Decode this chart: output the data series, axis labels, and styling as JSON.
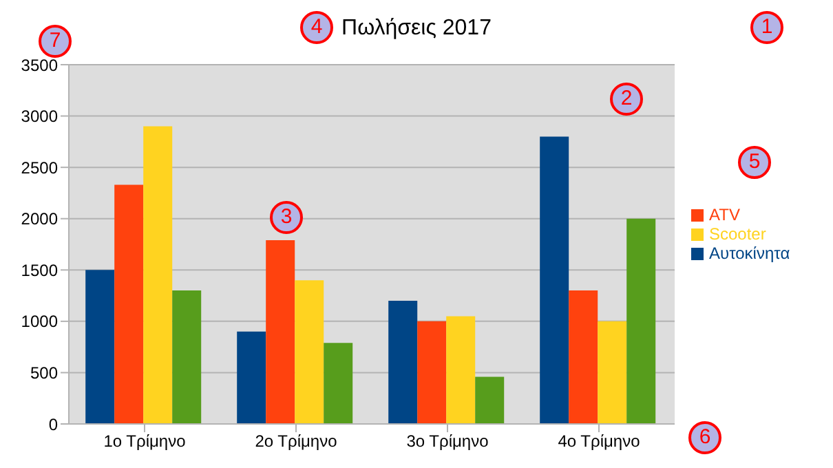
{
  "chart_data": {
    "type": "bar",
    "title": "Πωλήσεις 2017",
    "categories": [
      "1ο Τρίμηνο",
      "2ο Τρίμηνο",
      "3ο Τρίμηνο",
      "4ο Τρίμηνο"
    ],
    "series": [
      {
        "name": "Αυτοκίνητα",
        "color": "#004586",
        "values": [
          1500,
          900,
          1200,
          2800
        ]
      },
      {
        "name": "ATV",
        "color": "#ff420e",
        "values": [
          2330,
          1790,
          1000,
          1300
        ]
      },
      {
        "name": "Scooter",
        "color": "#ffd320",
        "values": [
          2900,
          1400,
          1050,
          1000
        ]
      },
      {
        "color": "#579d1c",
        "values": [
          1300,
          790,
          460,
          2000
        ]
      }
    ],
    "ylim": [
      0,
      3500
    ],
    "yticks": [
      0,
      500,
      1000,
      1500,
      2000,
      2500,
      3000,
      3500
    ],
    "grid": "y",
    "legend": "right",
    "annotations": [
      "1",
      "2",
      "3",
      "4",
      "5",
      "6",
      "7"
    ]
  }
}
